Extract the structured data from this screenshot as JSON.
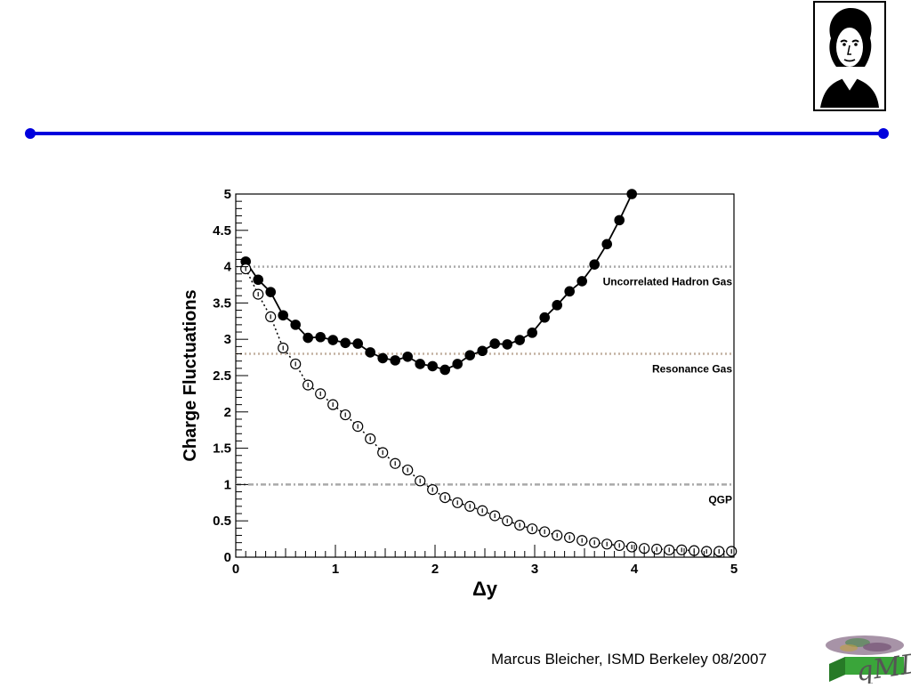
{
  "footer": {
    "text": "Marcus Bleicher, ISMD Berkeley 08/2007"
  },
  "header": {
    "portrait_icon": "goethe-portrait-icon",
    "rule_color": "#0000dd"
  },
  "logo": {
    "icon": "umd-logo-icon",
    "text": "qMD"
  },
  "chart_data": {
    "type": "line",
    "xlabel": "Δy",
    "ylabel": "Charge Fluctuations",
    "xlim": [
      0,
      5
    ],
    "ylim": [
      0,
      5
    ],
    "x_ticks": [
      "0",
      "1",
      "2",
      "3",
      "4",
      "5"
    ],
    "y_ticks": [
      "0",
      "0.5",
      "1",
      "1.5",
      "2",
      "2.5",
      "3",
      "3.5",
      "4",
      "4.5",
      "5"
    ],
    "grid": false,
    "reference_lines": [
      {
        "label": "Uncorrelated Hadron Gas",
        "y": 4.0,
        "style": "dotted",
        "color": "#aaaaaa"
      },
      {
        "label": "Resonance Gas",
        "y": 2.8,
        "style": "dotted",
        "color": "#c2b0a0"
      },
      {
        "label": "QGP",
        "y": 1.0,
        "style": "dash-dot",
        "color": "#aaaaaa"
      }
    ],
    "series": [
      {
        "marker": "filled-circle",
        "line": "solid",
        "x": [
          0.1,
          0.225,
          0.35,
          0.475,
          0.6,
          0.725,
          0.85,
          0.975,
          1.1,
          1.225,
          1.35,
          1.475,
          1.6,
          1.725,
          1.85,
          1.975,
          2.1,
          2.225,
          2.35,
          2.475,
          2.6,
          2.725,
          2.85,
          2.975,
          3.1,
          3.225,
          3.35,
          3.475,
          3.6,
          3.725,
          3.85,
          3.975
        ],
        "y": [
          4.07,
          3.82,
          3.65,
          3.33,
          3.2,
          3.02,
          3.03,
          2.99,
          2.95,
          2.94,
          2.82,
          2.74,
          2.71,
          2.76,
          2.66,
          2.63,
          2.58,
          2.66,
          2.78,
          2.84,
          2.94,
          2.93,
          2.99,
          3.09,
          3.3,
          3.47,
          3.66,
          3.8,
          4.03,
          4.31,
          4.64,
          5.0
        ]
      },
      {
        "marker": "open-circle",
        "line": "dotted",
        "x": [
          0.1,
          0.225,
          0.35,
          0.475,
          0.6,
          0.725,
          0.85,
          0.975,
          1.1,
          1.225,
          1.35,
          1.475,
          1.6,
          1.725,
          1.85,
          1.975,
          2.1,
          2.225,
          2.35,
          2.475,
          2.6,
          2.725,
          2.85,
          2.975,
          3.1,
          3.225,
          3.35,
          3.475,
          3.6,
          3.725,
          3.85,
          3.975,
          4.1,
          4.225,
          4.35,
          4.475,
          4.6,
          4.725,
          4.85,
          4.975
        ],
        "y": [
          3.97,
          3.62,
          3.31,
          2.88,
          2.66,
          2.37,
          2.25,
          2.1,
          1.96,
          1.8,
          1.63,
          1.44,
          1.29,
          1.2,
          1.05,
          0.93,
          0.82,
          0.75,
          0.7,
          0.64,
          0.57,
          0.5,
          0.44,
          0.39,
          0.35,
          0.3,
          0.27,
          0.23,
          0.2,
          0.18,
          0.16,
          0.14,
          0.12,
          0.11,
          0.1,
          0.1,
          0.09,
          0.08,
          0.08,
          0.08
        ]
      }
    ]
  }
}
